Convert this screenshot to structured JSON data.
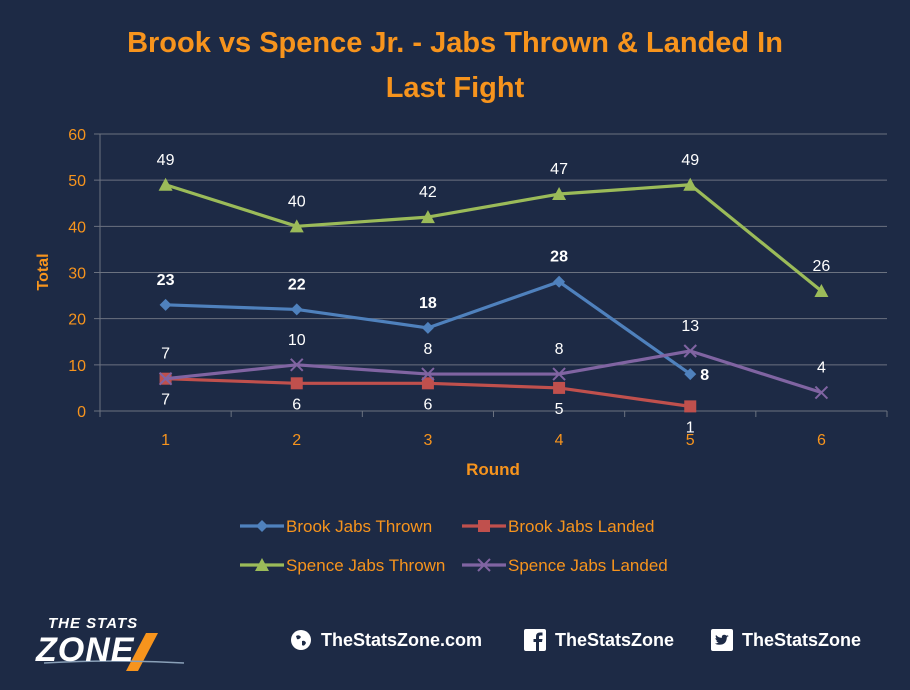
{
  "chart_data": {
    "type": "line",
    "title": "Brook vs Spence Jr. - Jabs Thrown & Landed In Last Fight",
    "xlabel": "Round",
    "ylabel": "Total",
    "categories": [
      "1",
      "2",
      "3",
      "4",
      "5",
      "6"
    ],
    "ylim": [
      0,
      60
    ],
    "yticks": [
      0,
      10,
      20,
      30,
      40,
      50,
      60
    ],
    "grid": true,
    "legend_position": "bottom",
    "series": [
      {
        "name": "Brook Jabs Thrown",
        "values": [
          23,
          22,
          18,
          28,
          8,
          null
        ],
        "color": "#4f81bd",
        "marker": "diamond"
      },
      {
        "name": "Brook Jabs Landed",
        "values": [
          7,
          6,
          6,
          5,
          1,
          null
        ],
        "color": "#c0504d",
        "marker": "square"
      },
      {
        "name": "Spence Jabs Thrown",
        "values": [
          49,
          40,
          42,
          47,
          49,
          26
        ],
        "color": "#9bbb59",
        "marker": "triangle"
      },
      {
        "name": "Spence Jabs Landed",
        "values": [
          7,
          10,
          8,
          8,
          13,
          4
        ],
        "color": "#8064a2",
        "marker": "x"
      }
    ]
  },
  "colors": {
    "background": "#1d2a45",
    "title": "#f7941d",
    "axis_text": "#f7941d",
    "data_label": "#ffffff",
    "grid": "#6b7280"
  },
  "footer": {
    "brand_top": "THE STATS",
    "brand_bottom": "ZONE",
    "website": "TheStatsZone.com",
    "facebook": "TheStatsZone",
    "twitter": "TheStatsZone"
  }
}
